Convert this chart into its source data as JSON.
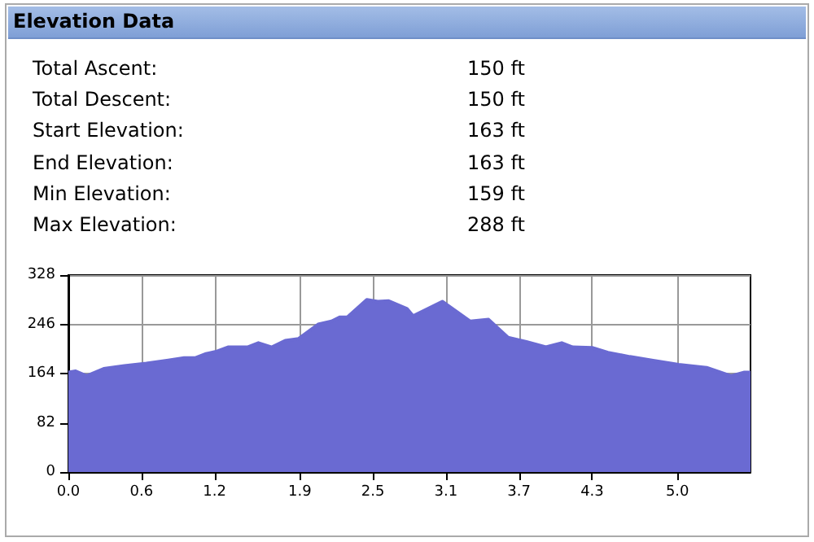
{
  "chart_data": [
    {
      "type": "other",
      "title": "Elevation Data",
      "annotations": [
        "Total Ascent:",
        "150 ft",
        "Total Descent:",
        "150 ft",
        "Start Elevation:",
        "163 ft",
        "End Elevation:",
        "163 ft",
        "Min Elevation:",
        "159 ft",
        "Max Elevation:",
        "288 ft"
      ]
    },
    {
      "type": "area",
      "color": "#6a6ad2",
      "grid": true,
      "x": [
        0,
        0.06,
        0.15,
        0.29,
        0.46,
        0.64,
        0.82,
        0.95,
        1.04,
        1.13,
        1.22,
        1.31,
        1.47,
        1.56,
        1.67,
        1.78,
        1.89,
        2.05,
        2.16,
        2.23,
        2.29,
        2.45,
        2.54,
        2.63,
        2.78,
        2.83,
        3.07,
        3.3,
        3.45,
        3.61,
        3.76,
        3.92,
        4.05,
        4.14,
        4.3,
        4.43,
        4.61,
        4.79,
        5.01,
        5.24,
        5.44,
        5.55,
        5.6
      ],
      "values": [
        166,
        168,
        160,
        172,
        177,
        181,
        186,
        190,
        190,
        197,
        201,
        208,
        208,
        215,
        208,
        219,
        222,
        246,
        251,
        258,
        258,
        287,
        284,
        285,
        272,
        260,
        284,
        251,
        254,
        224,
        217,
        208,
        215,
        208,
        207,
        199,
        192,
        186,
        179,
        174,
        160,
        166,
        166
      ],
      "xlim": [
        0,
        5.6
      ],
      "xticks": [
        {
          "value": 0,
          "label": "0.0"
        },
        {
          "value": 0.6,
          "label": "0.6"
        },
        {
          "value": 1.2,
          "label": "1.2"
        },
        {
          "value": 1.9,
          "label": "1.9"
        },
        {
          "value": 2.5,
          "label": "2.5"
        },
        {
          "value": 3.1,
          "label": "3.1"
        },
        {
          "value": 3.7,
          "label": "3.7"
        },
        {
          "value": 4.3,
          "label": "4.3"
        },
        {
          "value": 5,
          "label": "5.0"
        }
      ],
      "ylim": [
        0,
        328
      ],
      "yticks": [
        0,
        82,
        164,
        246,
        328
      ]
    }
  ]
}
